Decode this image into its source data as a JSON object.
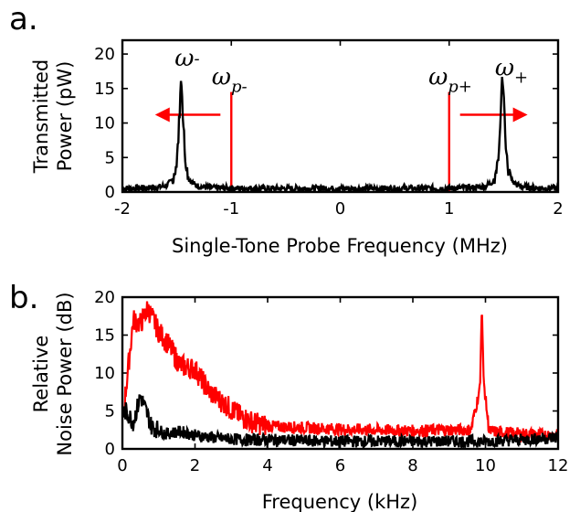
{
  "chart_data": [
    {
      "panel": "a.",
      "type": "line",
      "xlabel": "Single-Tone Probe Frequency (MHz)",
      "ylabel": "Transmitted Power (pW)",
      "ylabel_lines": [
        "Transmitted",
        "Power (pW)"
      ],
      "xlim": [
        -2,
        2
      ],
      "ylim": [
        0,
        22
      ],
      "xticks": [
        -2,
        -1,
        0,
        1,
        2
      ],
      "yticks": [
        0,
        5,
        10,
        15,
        20
      ],
      "xtick_labels": [
        "-2",
        "-1",
        "0",
        "1",
        "2"
      ],
      "ytick_labels": [
        "0",
        "5",
        "10",
        "15",
        "20"
      ],
      "grid": false,
      "series": [
        {
          "color": "#000000",
          "peaks": [
            {
              "center": -1.46,
              "height": 15.3,
              "width": 0.025
            },
            {
              "center": 1.49,
              "height": 15.8,
              "width": 0.025
            }
          ],
          "baseline": 0.5,
          "x_sample": [
            -2,
            -1.6,
            -1.5,
            -1.47,
            -1.46,
            -1.45,
            -1.4,
            -1.2,
            -1,
            0,
            1,
            1.4,
            1.47,
            1.49,
            1.51,
            1.6,
            2
          ],
          "y_sample": [
            0.5,
            0.8,
            2.5,
            10.0,
            15.3,
            11.0,
            3.0,
            0.8,
            0.5,
            0.5,
            0.5,
            1.5,
            10.5,
            15.8,
            9.0,
            1.5,
            0.5
          ]
        }
      ],
      "markers": [
        {
          "x": -1,
          "color": "#ff0000"
        },
        {
          "x": 1,
          "color": "#ff0000"
        }
      ],
      "arrows": [
        {
          "from": -1.1,
          "to": -1.7,
          "y": 11.2,
          "color": "#ff0000"
        },
        {
          "from": 1.1,
          "to": 1.72,
          "y": 11.2,
          "color": "#ff0000"
        }
      ],
      "annotations": [
        {
          "main": "ω",
          "sub": "-",
          "x": -1.52,
          "y": 18.3
        },
        {
          "main": "ω",
          "sub": "p-",
          "x": -1.18,
          "y": 15.6
        },
        {
          "main": "ω",
          "sub": "p+",
          "x": 0.81,
          "y": 15.6
        },
        {
          "main": "ω",
          "sub": "+",
          "x": 1.42,
          "y": 16.9
        }
      ]
    },
    {
      "panel": "b.",
      "type": "line",
      "xlabel": "Frequency (kHz)",
      "ylabel": "Relative Noise Power (dB)",
      "ylabel_lines": [
        "Relative",
        "Noise Power (dB)"
      ],
      "xlim": [
        0,
        12
      ],
      "ylim": [
        0,
        20
      ],
      "xticks": [
        0,
        2,
        4,
        6,
        8,
        10,
        12
      ],
      "yticks": [
        0,
        5,
        10,
        15,
        20
      ],
      "xtick_labels": [
        "0",
        "2",
        "4",
        "6",
        "8",
        "10",
        "12"
      ],
      "ytick_labels": [
        "0",
        "5",
        "10",
        "15",
        "20"
      ],
      "grid": false,
      "series": [
        {
          "color": "#ff0000",
          "x": [
            0,
            0.1,
            0.3,
            0.5,
            0.7,
            1.0,
            1.3,
            1.6,
            2.0,
            2.4,
            2.8,
            3.2,
            3.6,
            4.0,
            5.0,
            6.0,
            7.0,
            8.0,
            9.0,
            9.6,
            9.85,
            9.9,
            9.95,
            10.1,
            10.5,
            11.0,
            12.0
          ],
          "y": [
            3.5,
            8.0,
            17.0,
            16.5,
            18.5,
            15.5,
            13.5,
            11.0,
            10.5,
            7.5,
            6.0,
            4.5,
            3.5,
            3.0,
            2.8,
            2.6,
            2.5,
            2.4,
            2.5,
            2.5,
            8.0,
            19.0,
            9.0,
            2.3,
            2.2,
            2.0,
            1.8
          ]
        },
        {
          "color": "#000000",
          "x": [
            0,
            0.1,
            0.3,
            0.5,
            0.8,
            1.2,
            1.6,
            2.0,
            2.5,
            3.0,
            3.5,
            4.0,
            5.0,
            6.0,
            7.0,
            8.0,
            9.0,
            10.0,
            11.0,
            12.0
          ],
          "y": [
            4.5,
            5.0,
            3.5,
            7.0,
            3.0,
            2.0,
            2.3,
            1.8,
            1.5,
            1.3,
            1.2,
            1.2,
            1.1,
            1.0,
            1.0,
            1.0,
            1.0,
            1.0,
            1.2,
            1.5
          ]
        }
      ]
    }
  ]
}
